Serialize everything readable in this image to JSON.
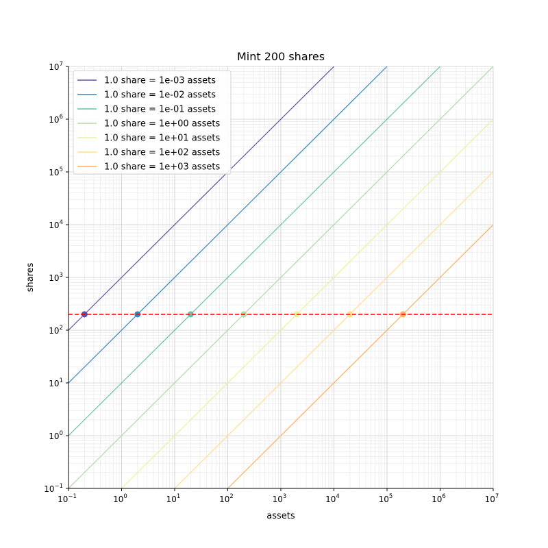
{
  "chart_data": {
    "type": "line",
    "title": "Mint 200 shares",
    "xlabel": "assets",
    "ylabel": "shares",
    "xscale": "log",
    "yscale": "log",
    "xlim": [
      0.1,
      10000000
    ],
    "ylim": [
      0.1,
      10000000
    ],
    "xtick_exponents": [
      -1,
      0,
      1,
      2,
      3,
      4,
      5,
      6,
      7
    ],
    "ytick_exponents": [
      -1,
      0,
      1,
      2,
      3,
      4,
      5,
      6,
      7
    ],
    "grid": "major and minor",
    "legend_position": "top-left",
    "hline": {
      "y": 200,
      "color": "#ff0000",
      "style": "dashed"
    },
    "series": [
      {
        "name": "1.0 share = 1e-03 assets",
        "assets_per_share": 0.001,
        "color": "#5e4fa2",
        "mint_point": [
          0.2,
          200
        ]
      },
      {
        "name": "1.0 share = 1e-02 assets",
        "assets_per_share": 0.01,
        "color": "#3288bd",
        "mint_point": [
          2,
          200
        ]
      },
      {
        "name": "1.0 share = 1e-01 assets",
        "assets_per_share": 0.1,
        "color": "#66c2a5",
        "mint_point": [
          20,
          200
        ]
      },
      {
        "name": "1.0 share = 1e+00 assets",
        "assets_per_share": 1,
        "color": "#abdda4",
        "mint_point": [
          200,
          200
        ]
      },
      {
        "name": "1.0 share = 1e+01 assets",
        "assets_per_share": 10,
        "color": "#e6f598",
        "mint_point": [
          2000,
          200
        ]
      },
      {
        "name": "1.0 share = 1e+02 assets",
        "assets_per_share": 100,
        "color": "#fee08b",
        "mint_point": [
          20000,
          200
        ]
      },
      {
        "name": "1.0 share = 1e+03 assets",
        "assets_per_share": 1000,
        "color": "#fdae61",
        "mint_point": [
          200000,
          200
        ]
      }
    ]
  }
}
